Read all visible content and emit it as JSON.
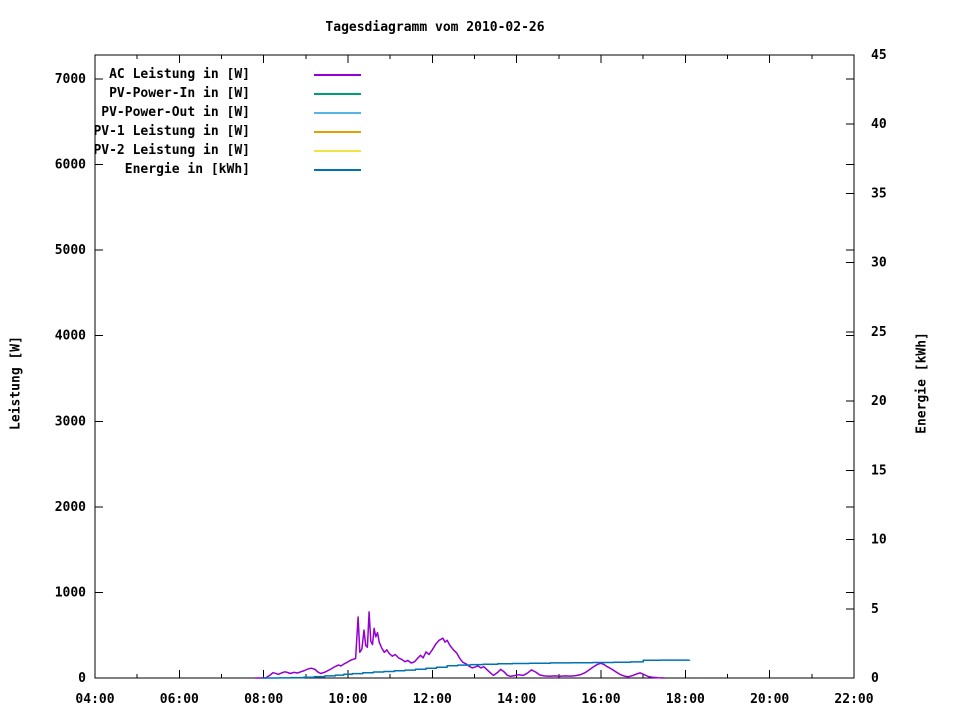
{
  "chart": {
    "title": "Tagesdiagramm vom 2010-02-26"
  },
  "axis_labels": {
    "left": "Leistung [W]",
    "right": "Energie [kWh]"
  },
  "legend": {
    "position": "top-left",
    "items": [
      {
        "label": "AC Leistung in [W]",
        "color": "#9400D3"
      },
      {
        "label": "PV-Power-In in [W]",
        "color": "#009E73"
      },
      {
        "label": "PV-Power-Out in [W]",
        "color": "#56B4E9"
      },
      {
        "label": "PV-1 Leistung in [W]",
        "color": "#E69F00"
      },
      {
        "label": "PV-2 Leistung in [W]",
        "color": "#F0E442"
      },
      {
        "label": "Energie in [kWh]",
        "color": "#0072B2"
      }
    ]
  },
  "chart_data": {
    "type": "line",
    "title": "Tagesdiagramm vom 2010-02-26",
    "grid": false,
    "border": true,
    "x_axis": {
      "unit": "time of day",
      "range_hours": [
        4,
        22
      ],
      "ticks": [
        {
          "hour": 4,
          "label": "04:00"
        },
        {
          "hour": 6,
          "label": "06:00"
        },
        {
          "hour": 8,
          "label": "08:00"
        },
        {
          "hour": 10,
          "label": "10:00"
        },
        {
          "hour": 12,
          "label": "12:00"
        },
        {
          "hour": 14,
          "label": "14:00"
        },
        {
          "hour": 16,
          "label": "16:00"
        },
        {
          "hour": 18,
          "label": "18:00"
        },
        {
          "hour": 20,
          "label": "20:00"
        },
        {
          "hour": 22,
          "label": "22:00"
        }
      ],
      "minor_tick_hours": [
        5,
        7,
        9,
        11,
        13,
        15,
        17,
        19,
        21
      ]
    },
    "y_axis": {
      "label": "Leistung [W]",
      "range": [
        0,
        7280
      ],
      "ticks": [
        {
          "value": 0,
          "label": "0"
        },
        {
          "value": 1000,
          "label": "1000"
        },
        {
          "value": 2000,
          "label": "2000"
        },
        {
          "value": 3000,
          "label": "3000"
        },
        {
          "value": 4000,
          "label": "4000"
        },
        {
          "value": 5000,
          "label": "5000"
        },
        {
          "value": 6000,
          "label": "6000"
        },
        {
          "value": 7000,
          "label": "7000"
        }
      ],
      "mirror_ticks_on_right": true
    },
    "y2_axis": {
      "label": "Energie [kWh]",
      "range": [
        0,
        45
      ],
      "ticks": [
        {
          "value": 0,
          "label": "0"
        },
        {
          "value": 5,
          "label": "5"
        },
        {
          "value": 10,
          "label": "10"
        },
        {
          "value": 15,
          "label": "15"
        },
        {
          "value": 20,
          "label": "20"
        },
        {
          "value": 25,
          "label": "25"
        },
        {
          "value": 30,
          "label": "30"
        },
        {
          "value": 35,
          "label": "35"
        },
        {
          "value": 40,
          "label": "40"
        },
        {
          "value": 45,
          "label": "45"
        }
      ]
    },
    "series": [
      {
        "id": "ac-leistung",
        "name": "AC Leistung in [W]",
        "color": "#9400D3",
        "axis": "y1",
        "style": "line",
        "points": [
          [
            7.8,
            0
          ],
          [
            8.05,
            0
          ],
          [
            8.1,
            18
          ],
          [
            8.17,
            40
          ],
          [
            8.22,
            62
          ],
          [
            8.28,
            55
          ],
          [
            8.35,
            42
          ],
          [
            8.42,
            58
          ],
          [
            8.5,
            72
          ],
          [
            8.57,
            64
          ],
          [
            8.63,
            52
          ],
          [
            8.72,
            66
          ],
          [
            8.8,
            58
          ],
          [
            8.88,
            72
          ],
          [
            8.97,
            88
          ],
          [
            9.05,
            105
          ],
          [
            9.13,
            115
          ],
          [
            9.22,
            100
          ],
          [
            9.28,
            72
          ],
          [
            9.35,
            52
          ],
          [
            9.45,
            68
          ],
          [
            9.53,
            88
          ],
          [
            9.62,
            112
          ],
          [
            9.7,
            135
          ],
          [
            9.78,
            152
          ],
          [
            9.83,
            140
          ],
          [
            9.9,
            162
          ],
          [
            9.97,
            180
          ],
          [
            10.05,
            205
          ],
          [
            10.12,
            218
          ],
          [
            10.18,
            228
          ],
          [
            10.24,
            713
          ],
          [
            10.28,
            300
          ],
          [
            10.33,
            340
          ],
          [
            10.38,
            560
          ],
          [
            10.42,
            380
          ],
          [
            10.46,
            360
          ],
          [
            10.5,
            772
          ],
          [
            10.54,
            430
          ],
          [
            10.58,
            390
          ],
          [
            10.62,
            580
          ],
          [
            10.66,
            480
          ],
          [
            10.7,
            530
          ],
          [
            10.74,
            420
          ],
          [
            10.8,
            350
          ],
          [
            10.86,
            300
          ],
          [
            10.92,
            330
          ],
          [
            10.98,
            285
          ],
          [
            11.05,
            255
          ],
          [
            11.12,
            275
          ],
          [
            11.2,
            235
          ],
          [
            11.28,
            215
          ],
          [
            11.35,
            190
          ],
          [
            11.42,
            205
          ],
          [
            11.5,
            175
          ],
          [
            11.58,
            190
          ],
          [
            11.65,
            230
          ],
          [
            11.72,
            265
          ],
          [
            11.78,
            235
          ],
          [
            11.85,
            305
          ],
          [
            11.92,
            275
          ],
          [
            12.0,
            330
          ],
          [
            12.08,
            395
          ],
          [
            12.16,
            440
          ],
          [
            12.25,
            465
          ],
          [
            12.3,
            420
          ],
          [
            12.35,
            440
          ],
          [
            12.42,
            380
          ],
          [
            12.5,
            330
          ],
          [
            12.58,
            290
          ],
          [
            12.65,
            230
          ],
          [
            12.72,
            185
          ],
          [
            12.8,
            165
          ],
          [
            12.88,
            135
          ],
          [
            12.95,
            118
          ],
          [
            13.02,
            130
          ],
          [
            13.08,
            142
          ],
          [
            13.15,
            118
          ],
          [
            13.22,
            132
          ],
          [
            13.3,
            95
          ],
          [
            13.38,
            60
          ],
          [
            13.45,
            30
          ],
          [
            13.55,
            65
          ],
          [
            13.62,
            100
          ],
          [
            13.7,
            72
          ],
          [
            13.78,
            32
          ],
          [
            13.85,
            20
          ],
          [
            13.95,
            28
          ],
          [
            14.05,
            38
          ],
          [
            14.15,
            30
          ],
          [
            14.25,
            55
          ],
          [
            14.35,
            95
          ],
          [
            14.45,
            70
          ],
          [
            14.55,
            35
          ],
          [
            14.65,
            25
          ],
          [
            14.78,
            20
          ],
          [
            14.9,
            25
          ],
          [
            15.02,
            20
          ],
          [
            15.15,
            25
          ],
          [
            15.28,
            22
          ],
          [
            15.4,
            28
          ],
          [
            15.52,
            40
          ],
          [
            15.62,
            62
          ],
          [
            15.72,
            95
          ],
          [
            15.82,
            130
          ],
          [
            15.92,
            160
          ],
          [
            16.0,
            172
          ],
          [
            16.07,
            158
          ],
          [
            16.15,
            132
          ],
          [
            16.25,
            105
          ],
          [
            16.35,
            72
          ],
          [
            16.45,
            42
          ],
          [
            16.55,
            22
          ],
          [
            16.65,
            15
          ],
          [
            16.75,
            28
          ],
          [
            16.85,
            48
          ],
          [
            16.93,
            60
          ],
          [
            17.02,
            40
          ],
          [
            17.12,
            18
          ],
          [
            17.22,
            8
          ],
          [
            17.35,
            4
          ],
          [
            17.5,
            0
          ]
        ]
      },
      {
        "id": "energie",
        "name": "Energie in [kWh]",
        "color": "#0072B2",
        "axis": "y2",
        "style": "steps",
        "points": [
          [
            7.95,
            0
          ],
          [
            8.35,
            0.01
          ],
          [
            8.65,
            0.03
          ],
          [
            8.95,
            0.06
          ],
          [
            9.2,
            0.1
          ],
          [
            9.45,
            0.15
          ],
          [
            9.7,
            0.21
          ],
          [
            9.9,
            0.27
          ],
          [
            10.1,
            0.32
          ],
          [
            10.35,
            0.38
          ],
          [
            10.6,
            0.43
          ],
          [
            10.85,
            0.47
          ],
          [
            11.1,
            0.52
          ],
          [
            11.35,
            0.57
          ],
          [
            11.6,
            0.63
          ],
          [
            11.85,
            0.7
          ],
          [
            12.1,
            0.78
          ],
          [
            12.35,
            0.88
          ],
          [
            12.6,
            0.93
          ],
          [
            12.9,
            0.97
          ],
          [
            13.2,
            1.0
          ],
          [
            13.55,
            1.03
          ],
          [
            13.9,
            1.05
          ],
          [
            14.3,
            1.07
          ],
          [
            14.8,
            1.09
          ],
          [
            15.3,
            1.1
          ],
          [
            15.8,
            1.12
          ],
          [
            16.3,
            1.14
          ],
          [
            16.7,
            1.16
          ],
          [
            17.0,
            1.28
          ],
          [
            17.4,
            1.29
          ],
          [
            18.1,
            1.3
          ]
        ]
      }
    ]
  }
}
